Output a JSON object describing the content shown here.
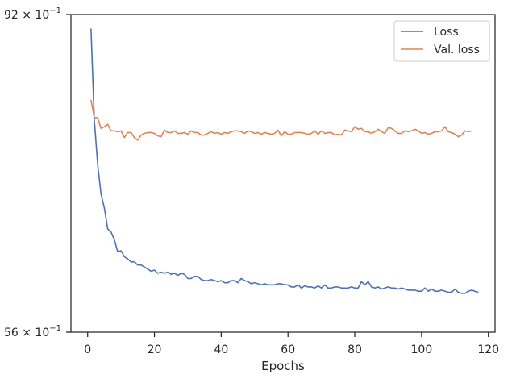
{
  "chart_data": {
    "type": "line",
    "title": "",
    "xlabel": "Epochs",
    "ylabel": "",
    "xlim": [
      -5,
      122
    ],
    "ylim": [
      0.56,
      0.92
    ],
    "yscale": "log",
    "grid": false,
    "legend_position": "top-right",
    "x_ticks": [
      0,
      20,
      40,
      60,
      80,
      100,
      120
    ],
    "y_ticks": [
      {
        "value": 0.92,
        "mantissa": "92",
        "exponent": "−1"
      },
      {
        "value": 0.56,
        "mantissa": "56",
        "exponent": "−1"
      }
    ],
    "series": [
      {
        "name": "Loss",
        "color": "#4c72b0",
        "x_start": 1,
        "values": [
          0.9,
          0.78,
          0.728,
          0.695,
          0.68,
          0.658,
          0.655,
          0.647,
          0.635,
          0.636,
          0.63,
          0.628,
          0.625,
          0.625,
          0.622,
          0.622,
          0.62,
          0.618,
          0.616,
          0.617,
          0.614,
          0.615,
          0.614,
          0.615,
          0.613,
          0.614,
          0.612,
          0.614,
          0.613,
          0.609,
          0.609,
          0.611,
          0.611,
          0.608,
          0.607,
          0.607,
          0.608,
          0.607,
          0.606,
          0.607,
          0.605,
          0.605,
          0.607,
          0.607,
          0.605,
          0.609,
          0.607,
          0.606,
          0.604,
          0.605,
          0.604,
          0.603,
          0.604,
          0.603,
          0.603,
          0.603,
          0.604,
          0.604,
          0.603,
          0.603,
          0.601,
          0.601,
          0.603,
          0.6,
          0.602,
          0.601,
          0.601,
          0.6,
          0.602,
          0.6,
          0.603,
          0.6,
          0.6,
          0.601,
          0.601,
          0.6,
          0.6,
          0.6,
          0.601,
          0.6,
          0.6,
          0.606,
          0.603,
          0.606,
          0.601,
          0.6,
          0.601,
          0.599,
          0.6,
          0.601,
          0.6,
          0.6,
          0.599,
          0.6,
          0.599,
          0.598,
          0.598,
          0.598,
          0.597,
          0.597,
          0.6,
          0.597,
          0.599,
          0.597,
          0.597,
          0.598,
          0.597,
          0.596,
          0.596,
          0.599,
          0.596,
          0.595,
          0.595,
          0.597,
          0.598,
          0.597,
          0.596
        ]
      },
      {
        "name": "Val. loss",
        "color": "#dd8452",
        "x_start": 1,
        "values": [
          0.805,
          0.783,
          0.783,
          0.77,
          0.772,
          0.775,
          0.767,
          0.767,
          0.766,
          0.767,
          0.759,
          0.765,
          0.765,
          0.759,
          0.756,
          0.762,
          0.764,
          0.765,
          0.765,
          0.764,
          0.761,
          0.76,
          0.768,
          0.765,
          0.765,
          0.767,
          0.764,
          0.764,
          0.765,
          0.763,
          0.767,
          0.765,
          0.765,
          0.762,
          0.762,
          0.764,
          0.766,
          0.764,
          0.765,
          0.763,
          0.765,
          0.764,
          0.766,
          0.767,
          0.767,
          0.766,
          0.764,
          0.767,
          0.766,
          0.764,
          0.765,
          0.763,
          0.765,
          0.764,
          0.763,
          0.764,
          0.768,
          0.761,
          0.766,
          0.763,
          0.763,
          0.765,
          0.765,
          0.765,
          0.764,
          0.763,
          0.764,
          0.767,
          0.763,
          0.767,
          0.764,
          0.765,
          0.765,
          0.762,
          0.763,
          0.762,
          0.768,
          0.767,
          0.766,
          0.772,
          0.769,
          0.77,
          0.766,
          0.766,
          0.764,
          0.766,
          0.769,
          0.766,
          0.764,
          0.771,
          0.77,
          0.767,
          0.764,
          0.764,
          0.767,
          0.766,
          0.767,
          0.769,
          0.767,
          0.764,
          0.765,
          0.763,
          0.764,
          0.766,
          0.766,
          0.767,
          0.772,
          0.766,
          0.765,
          0.763,
          0.76,
          0.762,
          0.767,
          0.766,
          0.767
        ]
      }
    ]
  }
}
